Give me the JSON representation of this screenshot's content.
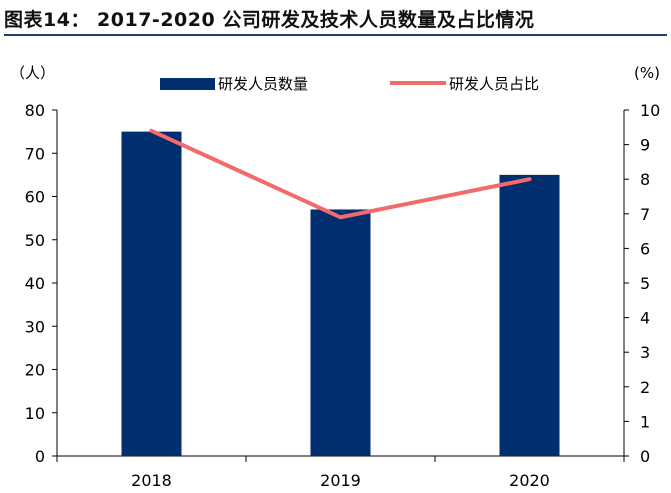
{
  "figure": {
    "title": "图表14：  2017-2020 公司研发及技术人员数量及占比情况"
  },
  "chart_data": {
    "type": "bar",
    "categories": [
      "2018",
      "2019",
      "2020"
    ],
    "series": [
      {
        "name": "研发人员数量",
        "type": "bar",
        "axis": "left",
        "values": [
          75,
          57,
          65
        ],
        "color": "#002e6e"
      },
      {
        "name": "研发人员占比",
        "type": "line",
        "axis": "right",
        "values": [
          9.4,
          6.9,
          8.0
        ],
        "color": "#f26a6a"
      }
    ],
    "y_left": {
      "unit_label": "（人）",
      "min": 0,
      "max": 80,
      "step": 10
    },
    "y_right": {
      "unit_label": "(%)",
      "min": 0,
      "max": 10,
      "step": 1
    },
    "legend_position": "top"
  }
}
